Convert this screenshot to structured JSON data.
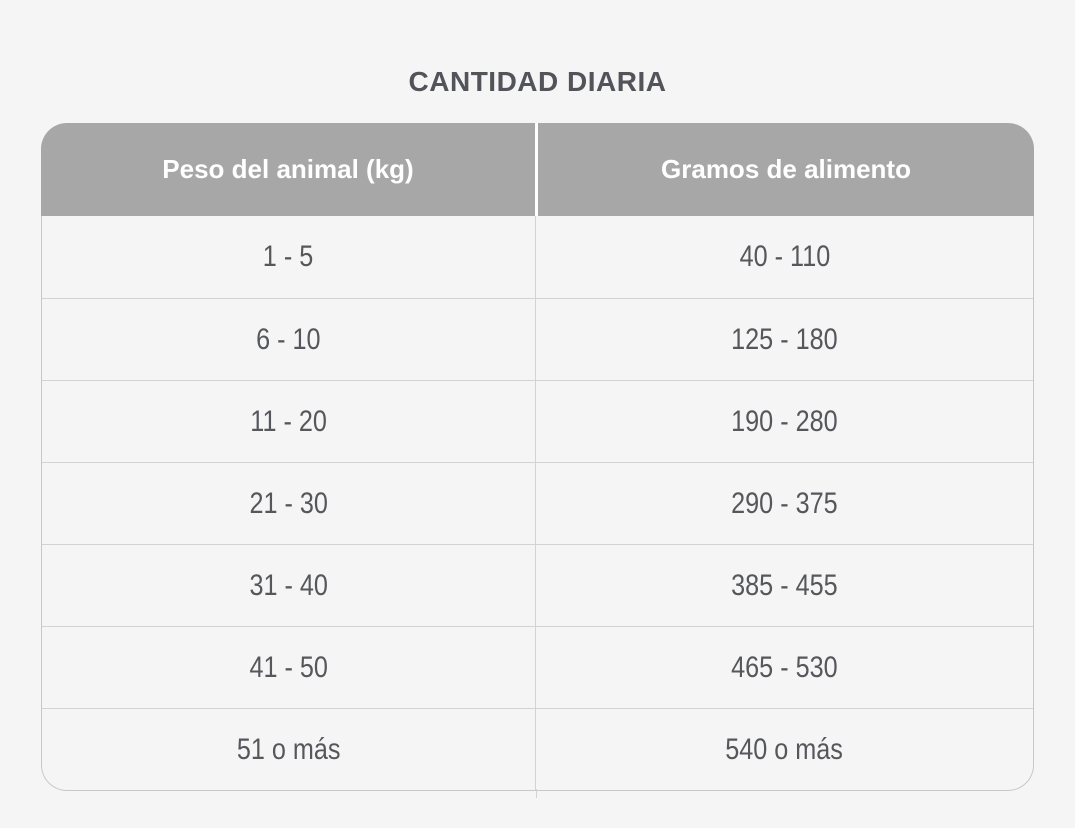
{
  "title": "CANTIDAD DIARIA",
  "chart_data": {
    "type": "table",
    "title": "CANTIDAD DIARIA",
    "columns": [
      "Peso del animal (kg)",
      "Gramos de alimento"
    ],
    "rows": [
      [
        "1 - 5",
        "40 - 110"
      ],
      [
        "6 - 10",
        "125 - 180"
      ],
      [
        "11 - 20",
        "190 - 280"
      ],
      [
        "21 - 30",
        "290 - 375"
      ],
      [
        "31 - 40",
        "385 - 455"
      ],
      [
        "41 - 50",
        "465 - 530"
      ],
      [
        "51 o más",
        "540 o más"
      ]
    ]
  },
  "colors": {
    "page_bg": "#f5f5f6",
    "header_bg": "#a7a7a8",
    "header_text": "#ffffff",
    "header_divider": "#ffffff",
    "cell_text": "#56575b",
    "title_text": "#535459",
    "table_border": "#c8c8cb",
    "row_line": "#d3d3d5"
  }
}
